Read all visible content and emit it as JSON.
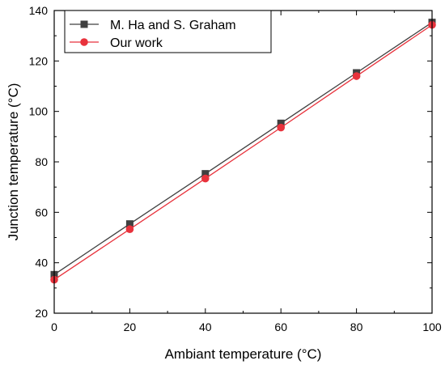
{
  "chart_data": {
    "type": "line",
    "xlabel": "Ambiant temperature (°C)",
    "ylabel": "Junction temperature (°C)",
    "xlim": [
      0,
      100
    ],
    "ylim": [
      20,
      140
    ],
    "xticks": [
      0,
      20,
      40,
      60,
      80,
      100
    ],
    "yticks": [
      20,
      40,
      60,
      80,
      100,
      120,
      140
    ],
    "xtick_labels": [
      "0",
      "20",
      "40",
      "60",
      "80",
      "100"
    ],
    "ytick_labels": [
      "20",
      "40",
      "60",
      "80",
      "100",
      "120",
      "140"
    ],
    "grid": false,
    "legend_position": "top-left",
    "series": [
      {
        "name": "M. Ha and S. Graham",
        "marker": "square",
        "color": "#404040",
        "x": [
          0,
          20,
          40,
          60,
          80,
          100
        ],
        "y": [
          35.3,
          55.4,
          75.3,
          95.3,
          115.3,
          135.3
        ]
      },
      {
        "name": "Our work",
        "marker": "circle",
        "color": "#e8323c",
        "x": [
          0,
          20,
          40,
          60,
          80,
          100
        ],
        "y": [
          33.3,
          53.3,
          73.4,
          93.6,
          114.0,
          134.3
        ]
      }
    ]
  }
}
